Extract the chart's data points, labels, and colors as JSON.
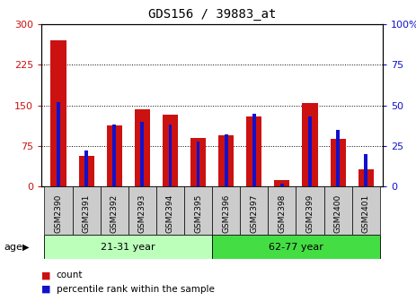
{
  "title": "GDS156 / 39883_at",
  "samples": [
    "GSM2390",
    "GSM2391",
    "GSM2392",
    "GSM2393",
    "GSM2394",
    "GSM2395",
    "GSM2396",
    "GSM2397",
    "GSM2398",
    "GSM2399",
    "GSM2400",
    "GSM2401"
  ],
  "count_values": [
    270,
    57,
    113,
    143,
    133,
    90,
    95,
    130,
    12,
    155,
    88,
    32
  ],
  "percentile_values": [
    52,
    22,
    38,
    40,
    38,
    28,
    32,
    45,
    2,
    43,
    35,
    20
  ],
  "groups": [
    {
      "label": "21-31 year",
      "start": 0,
      "end": 6,
      "color": "#bbffbb"
    },
    {
      "label": "62-77 year",
      "start": 6,
      "end": 12,
      "color": "#44dd44"
    }
  ],
  "ylim_left": [
    0,
    300
  ],
  "ylim_right": [
    0,
    100
  ],
  "yticks_left": [
    0,
    75,
    150,
    225,
    300
  ],
  "yticks_right": [
    0,
    25,
    50,
    75,
    100
  ],
  "bar_color_red": "#cc1111",
  "bar_color_blue": "#1111cc",
  "bar_width": 0.55,
  "blue_bar_width": 0.12,
  "age_label": "age",
  "legend_count": "count",
  "legend_percentile": "percentile rank within the sample",
  "background_color": "#ffffff",
  "tick_bg_color": "#cccccc"
}
